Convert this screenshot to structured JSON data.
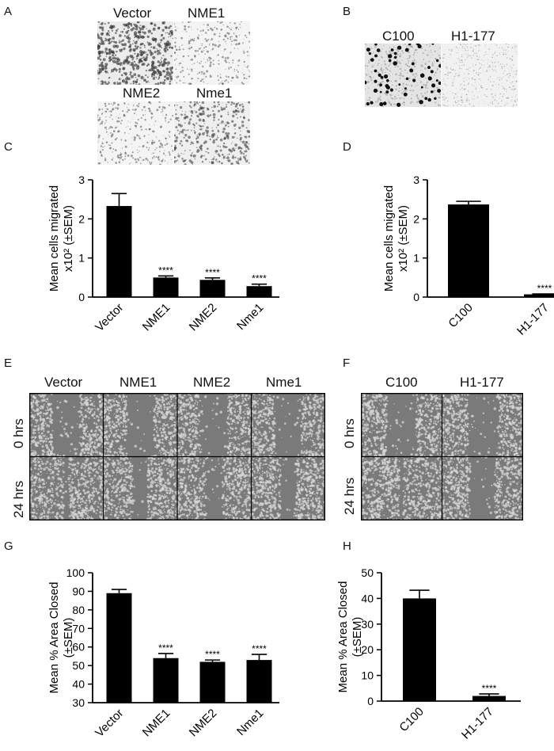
{
  "panels": {
    "A": {
      "letter": "A",
      "labels": [
        "Vector",
        "NME1",
        "NME2",
        "Nme1"
      ]
    },
    "B": {
      "letter": "B",
      "labels": [
        "C100",
        "H1-177"
      ]
    },
    "E": {
      "letter": "E",
      "labels": [
        "Vector",
        "NME1",
        "NME2",
        "Nme1"
      ],
      "rows": [
        "0 hrs",
        "24 hrs"
      ]
    },
    "F": {
      "letter": "F",
      "labels": [
        "C100",
        "H1-177"
      ],
      "rows": [
        "0 hrs",
        "24 hrs"
      ]
    }
  },
  "chart_data": [
    {
      "panel": "C",
      "type": "bar",
      "categories": [
        "Vector",
        "NME1",
        "NME2",
        "Nme1"
      ],
      "values": [
        2.33,
        0.5,
        0.44,
        0.28
      ],
      "errors": [
        0.32,
        0.04,
        0.05,
        0.05
      ],
      "annotations": [
        "",
        "****",
        "****",
        "****"
      ],
      "ylabel_lines": [
        "Mean cells migrated",
        "x10² (±SEM)"
      ],
      "ylim": [
        0,
        3
      ],
      "yticks": [
        "0",
        "1",
        "2",
        "3"
      ]
    },
    {
      "panel": "D",
      "type": "bar",
      "categories": [
        "C100",
        "H1-177"
      ],
      "values": [
        2.37,
        0.07
      ],
      "errors": [
        0.08,
        0.01
      ],
      "annotations": [
        "",
        "****"
      ],
      "ylabel_lines": [
        "Mean cells migrated",
        "x10² (±SEM)"
      ],
      "ylim": [
        0,
        3
      ],
      "yticks": [
        "0",
        "1",
        "2",
        "3"
      ]
    },
    {
      "panel": "G",
      "type": "bar",
      "categories": [
        "Vector",
        "NME1",
        "NME2",
        "Nme1"
      ],
      "values": [
        89,
        54,
        52,
        53
      ],
      "errors": [
        2,
        2.5,
        1,
        3
      ],
      "annotations": [
        "",
        "****",
        "****",
        "****"
      ],
      "ylabel_lines": [
        "Mean % Area Closed",
        "(±SEM)"
      ],
      "ylim": [
        30,
        100
      ],
      "yticks": [
        "30",
        "40",
        "50",
        "60",
        "70",
        "80",
        "90",
        "100"
      ]
    },
    {
      "panel": "H",
      "type": "bar",
      "categories": [
        "C100",
        "H1-177"
      ],
      "values": [
        40,
        2
      ],
      "errors": [
        3.2,
        0.8
      ],
      "annotations": [
        "",
        "****"
      ],
      "ylabel_lines": [
        "Mean % Area Closed",
        "(±SEM)"
      ],
      "ylim": [
        0,
        50
      ],
      "yticks": [
        "0",
        "10",
        "20",
        "30",
        "40",
        "50"
      ]
    }
  ],
  "colors": {
    "bar": "#000000",
    "micro_bg": "#f2f2f2",
    "micro_dots": "#555555",
    "wound_bg": "#7a7a7a",
    "wound_cells": "#d8d8d8"
  }
}
